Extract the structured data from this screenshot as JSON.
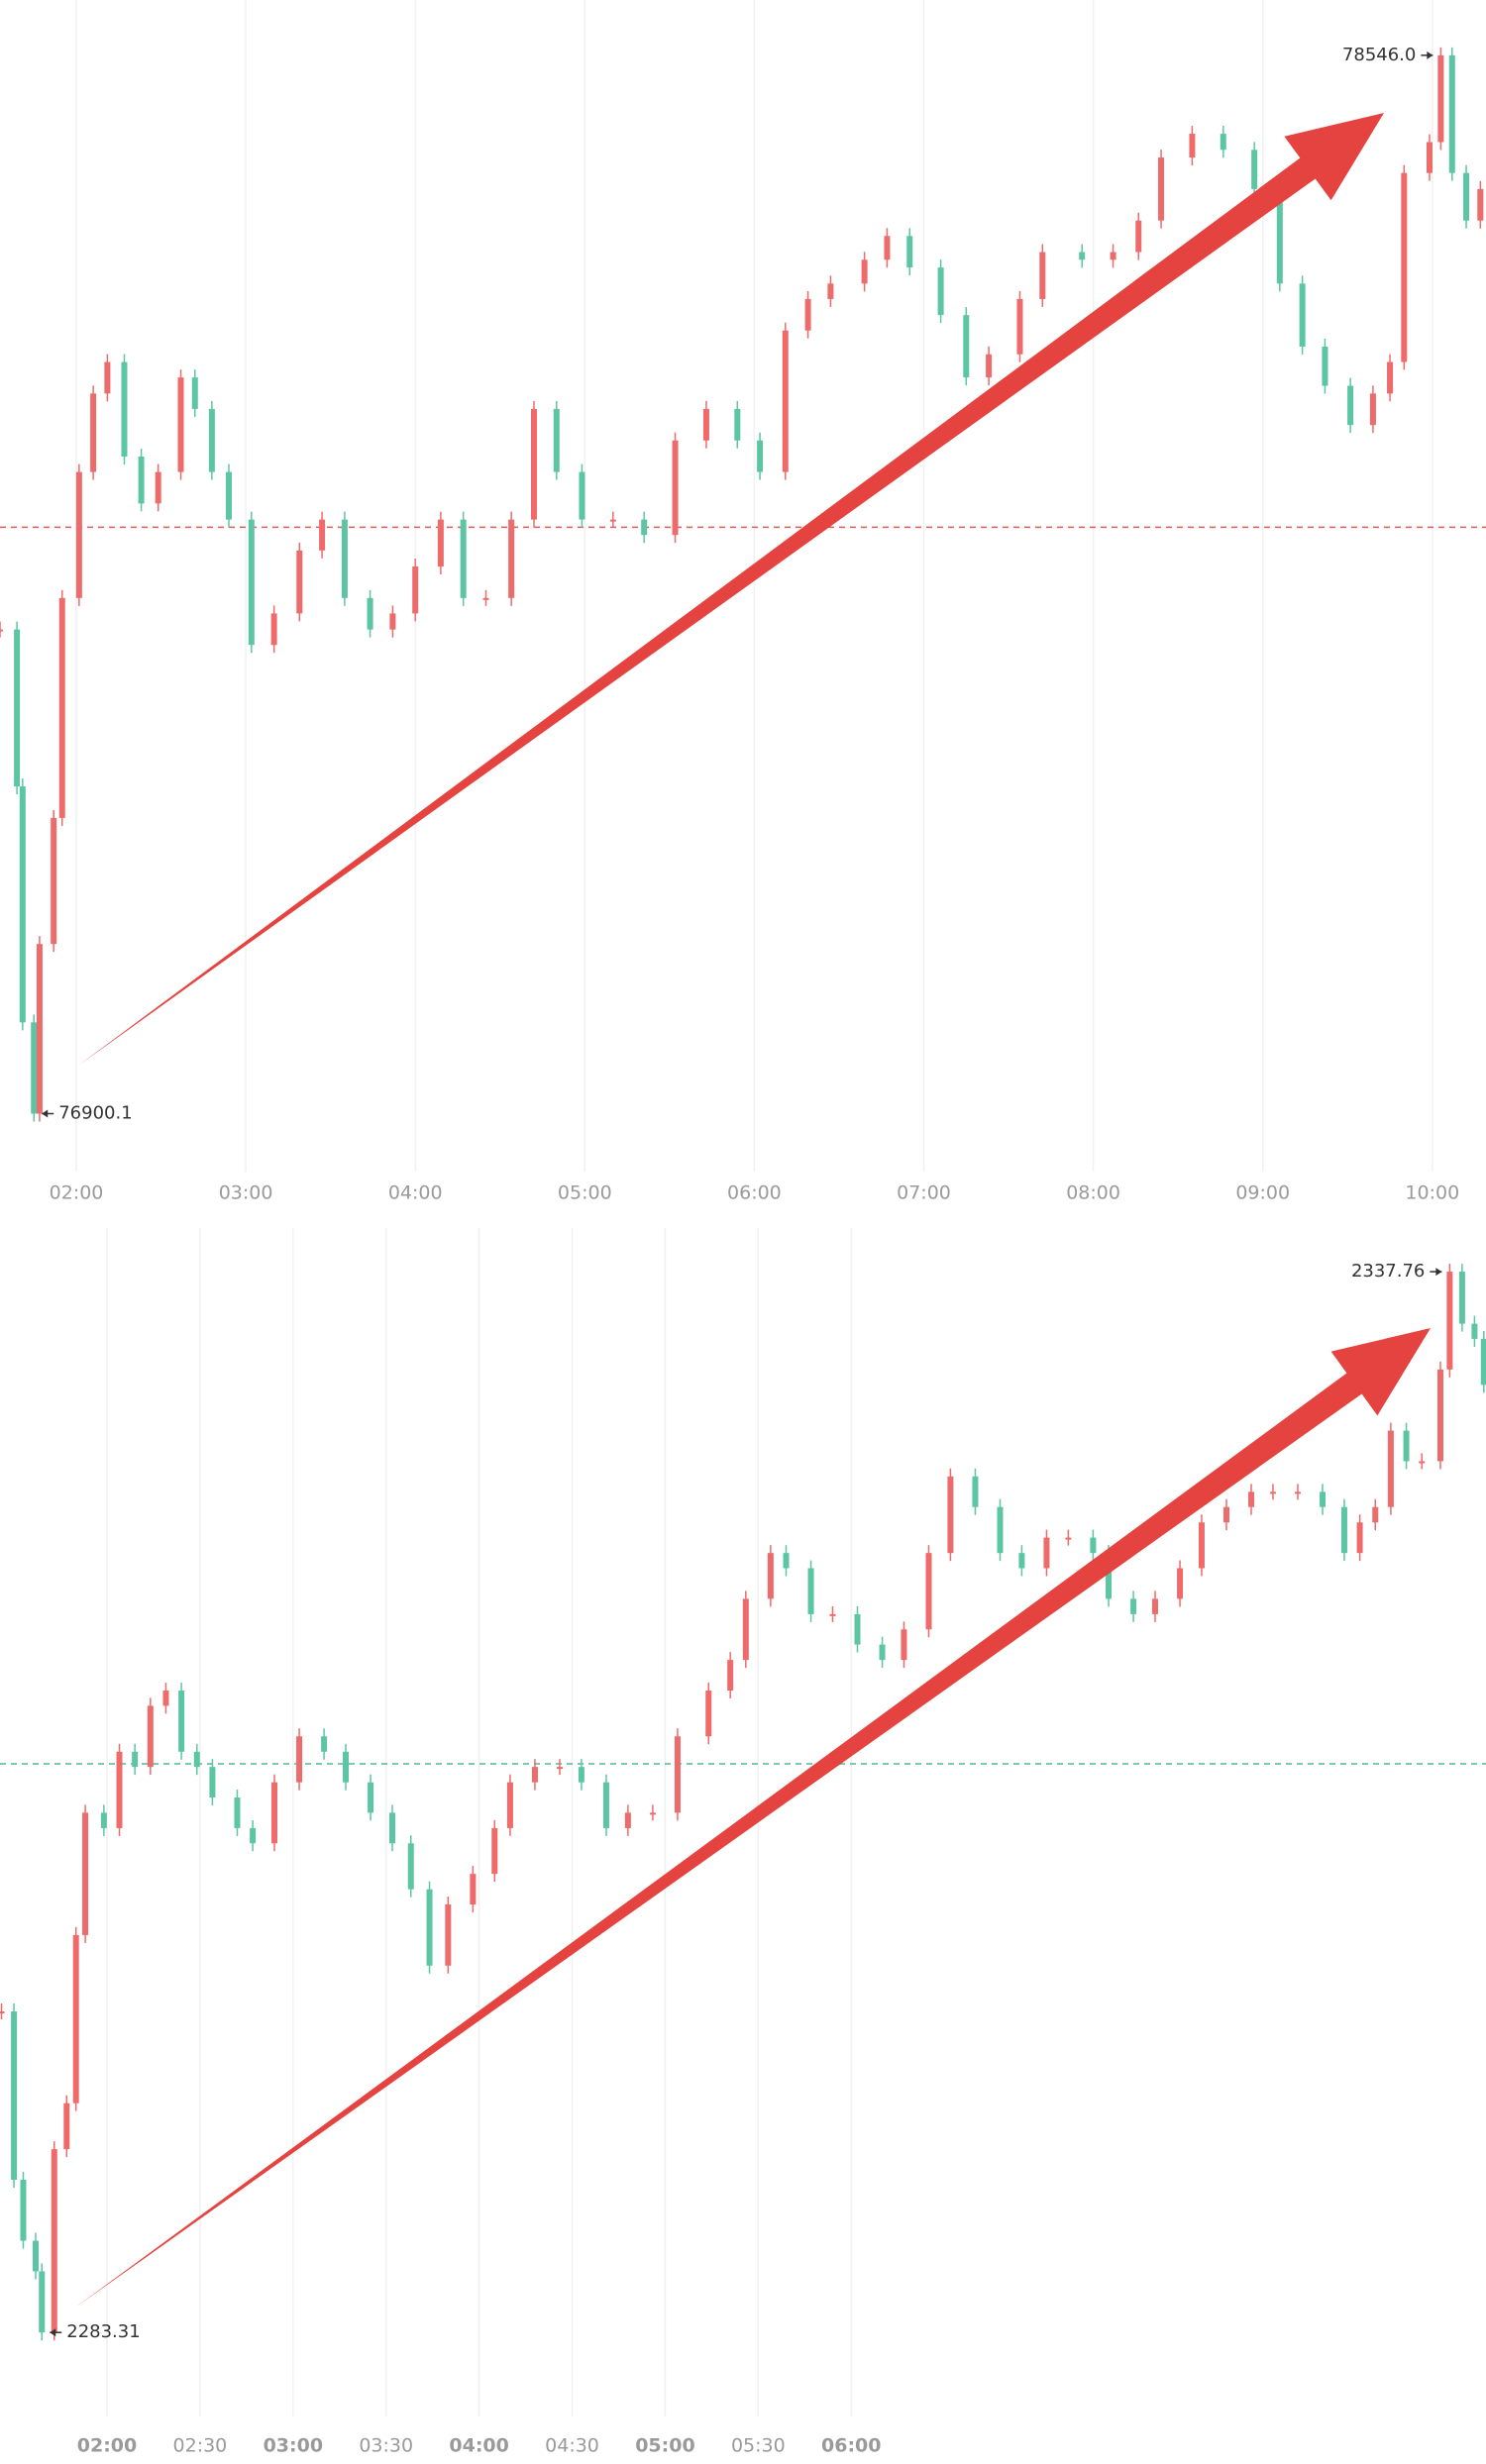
{
  "chart_data": [
    {
      "type": "candlestick",
      "up_color": "#ee6b6b",
      "down_color": "#5cc6a4",
      "grid": true,
      "xlim": [
        93,
        619
      ],
      "ylim": [
        76810,
        78632
      ],
      "xticks": [
        {
          "value": 120,
          "label": "02:00"
        },
        {
          "value": 180,
          "label": "03:00"
        },
        {
          "value": 240,
          "label": "04:00"
        },
        {
          "value": 300,
          "label": "05:00"
        },
        {
          "value": 360,
          "label": "06:00"
        },
        {
          "value": 420,
          "label": "07:00"
        },
        {
          "value": 480,
          "label": "08:00"
        },
        {
          "value": 540,
          "label": "09:00"
        },
        {
          "value": 600,
          "label": "10:00"
        }
      ],
      "ref_line": {
        "value": 77812,
        "color": "#e05a5a"
      },
      "annotations": [
        {
          "text": "78546.0",
          "x": 603,
          "y": 78546.0,
          "side": "left"
        },
        {
          "text": "76900.1",
          "x": 105,
          "y": 76900.1,
          "side": "right"
        }
      ],
      "x": [
        93,
        99,
        101,
        105,
        107,
        112,
        115,
        121,
        126,
        131,
        137,
        143,
        149,
        157,
        162,
        168,
        174,
        182,
        190,
        199,
        207,
        215,
        224,
        232,
        240,
        249,
        257,
        265,
        274,
        282,
        290,
        299,
        310,
        321,
        332,
        343,
        354,
        362,
        371,
        379,
        387,
        399,
        407,
        415,
        426,
        435,
        443,
        454,
        462,
        476,
        487,
        496,
        504,
        515,
        526,
        537,
        546,
        554,
        562,
        571,
        579,
        585,
        590,
        599,
        603,
        607,
        612,
        617
      ],
      "values": [
        77653,
        77409,
        77042,
        76900.1,
        77164,
        77360,
        77702,
        77898,
        78020,
        78069,
        77922,
        77849,
        77898,
        78045,
        77996,
        77898,
        77824,
        77629,
        77678,
        77776,
        77824,
        77702,
        77653,
        77678,
        77751,
        77824,
        77702,
        77702,
        77824,
        77996,
        77898,
        77824,
        77824,
        77800,
        77947,
        77996,
        77947,
        77898,
        78118,
        78167,
        78191,
        78228,
        78265,
        78216,
        78142,
        78045,
        78081,
        78167,
        78240,
        78228,
        78240,
        78289,
        78387,
        78424,
        78399,
        78338,
        78191,
        78093,
        78032,
        77971,
        78020,
        78069,
        78363,
        78411,
        78546.0,
        78363,
        78289,
        78338
      ]
    },
    {
      "type": "candlestick",
      "up_color": "#ee6b6b",
      "down_color": "#5cc6a4",
      "grid": true,
      "major_ticks_bold": true,
      "xlim": [
        85.5,
        564.7
      ],
      "ylim": [
        2279,
        2340
      ],
      "xticks": [
        {
          "value": 120,
          "label": "02:00"
        },
        {
          "value": 150,
          "label": "02:30"
        },
        {
          "value": 180,
          "label": "03:00"
        },
        {
          "value": 210,
          "label": "03:30"
        },
        {
          "value": 240,
          "label": "04:00"
        },
        {
          "value": 270,
          "label": "04:30"
        },
        {
          "value": 300,
          "label": "05:00"
        },
        {
          "value": 330,
          "label": "05:30"
        },
        {
          "value": 360,
          "label": "06:00"
        }
      ],
      "ref_line": {
        "value": 2312.5,
        "color": "#4fb894"
      },
      "annotations": [
        {
          "text": "2337.76",
          "x": 553,
          "y": 2337.76,
          "side": "left"
        },
        {
          "text": "2283.31",
          "x": 99,
          "y": 2283.31,
          "side": "right"
        }
      ],
      "x": [
        86,
        90,
        93,
        97,
        99,
        103,
        107,
        110,
        113,
        119,
        124,
        129,
        134,
        139,
        144,
        149,
        154,
        162,
        167,
        174,
        182,
        190,
        197,
        205,
        212,
        218,
        224,
        230,
        238,
        245,
        250,
        258,
        266,
        273,
        281,
        288,
        296,
        304,
        314,
        321,
        326,
        334,
        339,
        347,
        354,
        362,
        370,
        377,
        385,
        392,
        400,
        408,
        415,
        423,
        430,
        438,
        443,
        451,
        458,
        466,
        473,
        481,
        489,
        496,
        504,
        512,
        519,
        524,
        529,
        534,
        539,
        544,
        550,
        553,
        557,
        561,
        564
      ],
      "values": [
        2299.79,
        2291.15,
        2288.02,
        2286.45,
        2283.31,
        2292.72,
        2295.08,
        2303.71,
        2309.99,
        2309.2,
        2313.12,
        2312.34,
        2315.48,
        2316.26,
        2313.12,
        2312.34,
        2310.77,
        2309.2,
        2308.42,
        2311.55,
        2313.91,
        2313.12,
        2311.55,
        2309.99,
        2308.42,
        2306.06,
        2302.14,
        2305.28,
        2306.85,
        2309.2,
        2311.55,
        2312.34,
        2312.34,
        2311.55,
        2309.2,
        2309.99,
        2309.99,
        2313.91,
        2316.26,
        2317.83,
        2320.97,
        2323.32,
        2322.54,
        2320.18,
        2320.18,
        2318.62,
        2317.83,
        2319.4,
        2323.32,
        2327.25,
        2325.68,
        2323.32,
        2322.54,
        2324.11,
        2324.11,
        2323.32,
        2320.97,
        2320.18,
        2320.97,
        2322.54,
        2324.89,
        2325.68,
        2326.46,
        2326.46,
        2326.46,
        2325.68,
        2323.32,
        2324.89,
        2325.68,
        2329.6,
        2328.03,
        2328.03,
        2332.74,
        2337.76,
        2335.09,
        2334.31,
        2331.95
      ]
    }
  ]
}
